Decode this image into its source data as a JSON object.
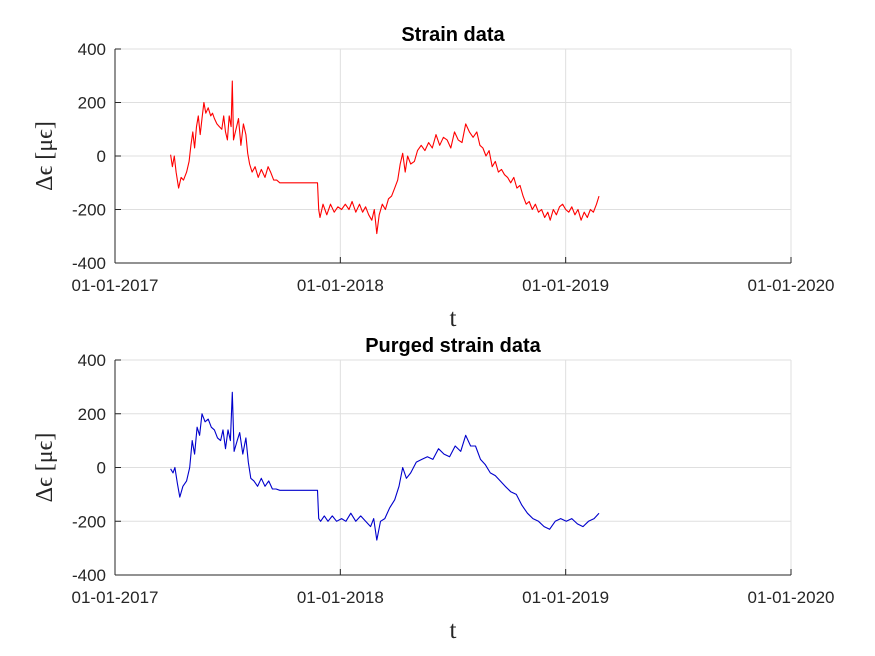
{
  "chart_data": [
    {
      "type": "line",
      "title": "Strain data",
      "xlabel": "t",
      "ylabel": "Δϵ [μϵ]",
      "grid": true,
      "color": "#ff0000",
      "xlim": [
        "2017-01-01",
        "2020-01-01"
      ],
      "ylim": [
        -400,
        400
      ],
      "yticks": [
        -400,
        -200,
        0,
        200,
        400
      ],
      "xtick_labels": [
        "01-01-2017",
        "01-01-2018",
        "01-01-2019",
        "01-01-2020"
      ],
      "ytick_labels": [
        "400",
        "200",
        "0",
        "-200",
        "-400"
      ],
      "series": [
        {
          "values": [
            [
              "2017-04-01",
              5
            ],
            [
              "2017-04-04",
              -40
            ],
            [
              "2017-04-07",
              0
            ],
            [
              "2017-04-10",
              -60
            ],
            [
              "2017-04-14",
              -120
            ],
            [
              "2017-04-18",
              -80
            ],
            [
              "2017-04-22",
              -90
            ],
            [
              "2017-04-27",
              -60
            ],
            [
              "2017-05-01",
              -20
            ],
            [
              "2017-05-04",
              40
            ],
            [
              "2017-05-07",
              90
            ],
            [
              "2017-05-10",
              30
            ],
            [
              "2017-05-13",
              110
            ],
            [
              "2017-05-16",
              150
            ],
            [
              "2017-05-19",
              80
            ],
            [
              "2017-05-22",
              140
            ],
            [
              "2017-05-25",
              200
            ],
            [
              "2017-05-28",
              160
            ],
            [
              "2017-06-01",
              180
            ],
            [
              "2017-06-05",
              150
            ],
            [
              "2017-06-08",
              160
            ],
            [
              "2017-06-11",
              140
            ],
            [
              "2017-06-15",
              120
            ],
            [
              "2017-06-19",
              110
            ],
            [
              "2017-06-23",
              100
            ],
            [
              "2017-06-26",
              150
            ],
            [
              "2017-06-29",
              90
            ],
            [
              "2017-07-02",
              60
            ],
            [
              "2017-07-05",
              150
            ],
            [
              "2017-07-08",
              110
            ],
            [
              "2017-07-10",
              280
            ],
            [
              "2017-07-12",
              60
            ],
            [
              "2017-07-16",
              100
            ],
            [
              "2017-07-20",
              140
            ],
            [
              "2017-07-24",
              40
            ],
            [
              "2017-07-28",
              120
            ],
            [
              "2017-08-01",
              80
            ],
            [
              "2017-08-04",
              10
            ],
            [
              "2017-08-07",
              -30
            ],
            [
              "2017-08-11",
              -60
            ],
            [
              "2017-08-16",
              -40
            ],
            [
              "2017-08-21",
              -80
            ],
            [
              "2017-08-26",
              -50
            ],
            [
              "2017-09-01",
              -80
            ],
            [
              "2017-09-06",
              -40
            ],
            [
              "2017-09-10",
              -60
            ],
            [
              "2017-09-15",
              -90
            ],
            [
              "2017-09-20",
              -90
            ],
            [
              "2017-09-25",
              -100
            ],
            [
              "2017-11-25",
              -100
            ],
            [
              "2017-11-27",
              -200
            ],
            [
              "2017-11-29",
              -230
            ],
            [
              "2017-12-04",
              -180
            ],
            [
              "2017-12-10",
              -220
            ],
            [
              "2017-12-16",
              -180
            ],
            [
              "2017-12-22",
              -210
            ],
            [
              "2017-12-28",
              -190
            ],
            [
              "2018-01-03",
              -200
            ],
            [
              "2018-01-09",
              -180
            ],
            [
              "2018-01-15",
              -200
            ],
            [
              "2018-01-20",
              -170
            ],
            [
              "2018-01-26",
              -210
            ],
            [
              "2018-02-01",
              -180
            ],
            [
              "2018-02-06",
              -210
            ],
            [
              "2018-02-11",
              -190
            ],
            [
              "2018-02-16",
              -220
            ],
            [
              "2018-02-21",
              -240
            ],
            [
              "2018-02-25",
              -200
            ],
            [
              "2018-03-01",
              -290
            ],
            [
              "2018-03-05",
              -220
            ],
            [
              "2018-03-10",
              -180
            ],
            [
              "2018-03-15",
              -200
            ],
            [
              "2018-03-20",
              -160
            ],
            [
              "2018-03-25",
              -150
            ],
            [
              "2018-03-30",
              -120
            ],
            [
              "2018-04-04",
              -90
            ],
            [
              "2018-04-08",
              -30
            ],
            [
              "2018-04-12",
              10
            ],
            [
              "2018-04-16",
              -60
            ],
            [
              "2018-04-20",
              0
            ],
            [
              "2018-04-25",
              -30
            ],
            [
              "2018-05-01",
              -20
            ],
            [
              "2018-05-06",
              20
            ],
            [
              "2018-05-12",
              40
            ],
            [
              "2018-05-18",
              20
            ],
            [
              "2018-05-24",
              50
            ],
            [
              "2018-05-30",
              30
            ],
            [
              "2018-06-05",
              80
            ],
            [
              "2018-06-11",
              40
            ],
            [
              "2018-06-17",
              70
            ],
            [
              "2018-06-23",
              60
            ],
            [
              "2018-06-29",
              30
            ],
            [
              "2018-07-05",
              90
            ],
            [
              "2018-07-11",
              60
            ],
            [
              "2018-07-17",
              50
            ],
            [
              "2018-07-23",
              120
            ],
            [
              "2018-07-29",
              90
            ],
            [
              "2018-08-04",
              70
            ],
            [
              "2018-08-10",
              90
            ],
            [
              "2018-08-15",
              40
            ],
            [
              "2018-08-20",
              30
            ],
            [
              "2018-08-25",
              0
            ],
            [
              "2018-08-30",
              20
            ],
            [
              "2018-09-04",
              -40
            ],
            [
              "2018-09-09",
              -20
            ],
            [
              "2018-09-14",
              -60
            ],
            [
              "2018-09-19",
              -50
            ],
            [
              "2018-09-24",
              -70
            ],
            [
              "2018-09-29",
              -80
            ],
            [
              "2018-10-04",
              -100
            ],
            [
              "2018-10-09",
              -80
            ],
            [
              "2018-10-14",
              -120
            ],
            [
              "2018-10-19",
              -110
            ],
            [
              "2018-10-24",
              -150
            ],
            [
              "2018-10-29",
              -180
            ],
            [
              "2018-11-03",
              -170
            ],
            [
              "2018-11-08",
              -200
            ],
            [
              "2018-11-13",
              -180
            ],
            [
              "2018-11-18",
              -210
            ],
            [
              "2018-11-23",
              -200
            ],
            [
              "2018-11-28",
              -230
            ],
            [
              "2018-12-03",
              -210
            ],
            [
              "2018-12-07",
              -240
            ],
            [
              "2018-12-12",
              -200
            ],
            [
              "2018-12-17",
              -220
            ],
            [
              "2018-12-22",
              -190
            ],
            [
              "2018-12-27",
              -180
            ],
            [
              "2019-01-01",
              -200
            ],
            [
              "2019-01-06",
              -210
            ],
            [
              "2019-01-11",
              -190
            ],
            [
              "2019-01-16",
              -220
            ],
            [
              "2019-01-21",
              -200
            ],
            [
              "2019-01-26",
              -240
            ],
            [
              "2019-01-31",
              -210
            ],
            [
              "2019-02-05",
              -230
            ],
            [
              "2019-02-10",
              -200
            ],
            [
              "2019-02-15",
              -210
            ],
            [
              "2019-02-20",
              -180
            ],
            [
              "2019-02-24",
              -150
            ]
          ]
        }
      ]
    },
    {
      "type": "line",
      "title": "Purged strain data",
      "xlabel": "t",
      "ylabel": "Δϵ [μϵ]",
      "grid": true,
      "color": "#0000cc",
      "xlim": [
        "2017-01-01",
        "2020-01-01"
      ],
      "ylim": [
        -400,
        400
      ],
      "yticks": [
        -400,
        -200,
        0,
        200,
        400
      ],
      "xtick_labels": [
        "01-01-2017",
        "01-01-2018",
        "01-01-2019",
        "01-01-2020"
      ],
      "ytick_labels": [
        "400",
        "200",
        "0",
        "-200",
        "-400"
      ],
      "series": [
        {
          "values": [
            [
              "2017-04-01",
              -5
            ],
            [
              "2017-04-05",
              -20
            ],
            [
              "2017-04-08",
              0
            ],
            [
              "2017-04-12",
              -60
            ],
            [
              "2017-04-16",
              -110
            ],
            [
              "2017-04-21",
              -70
            ],
            [
              "2017-04-27",
              -50
            ],
            [
              "2017-05-02",
              0
            ],
            [
              "2017-05-06",
              100
            ],
            [
              "2017-05-10",
              50
            ],
            [
              "2017-05-14",
              150
            ],
            [
              "2017-05-18",
              120
            ],
            [
              "2017-05-22",
              200
            ],
            [
              "2017-05-27",
              170
            ],
            [
              "2017-06-01",
              180
            ],
            [
              "2017-06-06",
              150
            ],
            [
              "2017-06-11",
              140
            ],
            [
              "2017-06-16",
              110
            ],
            [
              "2017-06-21",
              100
            ],
            [
              "2017-06-25",
              140
            ],
            [
              "2017-06-29",
              70
            ],
            [
              "2017-07-03",
              140
            ],
            [
              "2017-07-07",
              100
            ],
            [
              "2017-07-10",
              280
            ],
            [
              "2017-07-13",
              60
            ],
            [
              "2017-07-18",
              100
            ],
            [
              "2017-07-22",
              130
            ],
            [
              "2017-07-27",
              50
            ],
            [
              "2017-08-01",
              110
            ],
            [
              "2017-08-05",
              20
            ],
            [
              "2017-08-09",
              -40
            ],
            [
              "2017-08-14",
              -50
            ],
            [
              "2017-08-20",
              -70
            ],
            [
              "2017-08-26",
              -40
            ],
            [
              "2017-09-01",
              -70
            ],
            [
              "2017-09-07",
              -50
            ],
            [
              "2017-09-13",
              -80
            ],
            [
              "2017-09-19",
              -80
            ],
            [
              "2017-09-25",
              -85
            ],
            [
              "2017-11-25",
              -85
            ],
            [
              "2017-11-27",
              -190
            ],
            [
              "2017-11-30",
              -200
            ],
            [
              "2017-12-06",
              -180
            ],
            [
              "2017-12-12",
              -200
            ],
            [
              "2017-12-19",
              -180
            ],
            [
              "2017-12-26",
              -200
            ],
            [
              "2018-01-03",
              -190
            ],
            [
              "2018-01-10",
              -200
            ],
            [
              "2018-01-18",
              -170
            ],
            [
              "2018-01-26",
              -200
            ],
            [
              "2018-02-03",
              -180
            ],
            [
              "2018-02-11",
              -200
            ],
            [
              "2018-02-19",
              -220
            ],
            [
              "2018-02-24",
              -190
            ],
            [
              "2018-03-01",
              -270
            ],
            [
              "2018-03-07",
              -200
            ],
            [
              "2018-03-14",
              -190
            ],
            [
              "2018-03-22",
              -150
            ],
            [
              "2018-03-30",
              -120
            ],
            [
              "2018-04-06",
              -70
            ],
            [
              "2018-04-12",
              0
            ],
            [
              "2018-04-18",
              -40
            ],
            [
              "2018-04-25",
              -20
            ],
            [
              "2018-05-04",
              20
            ],
            [
              "2018-05-13",
              30
            ],
            [
              "2018-05-22",
              40
            ],
            [
              "2018-05-31",
              30
            ],
            [
              "2018-06-09",
              70
            ],
            [
              "2018-06-18",
              50
            ],
            [
              "2018-06-27",
              40
            ],
            [
              "2018-07-06",
              80
            ],
            [
              "2018-07-15",
              60
            ],
            [
              "2018-07-23",
              120
            ],
            [
              "2018-07-31",
              80
            ],
            [
              "2018-08-08",
              80
            ],
            [
              "2018-08-16",
              30
            ],
            [
              "2018-08-24",
              10
            ],
            [
              "2018-09-01",
              -20
            ],
            [
              "2018-09-09",
              -30
            ],
            [
              "2018-09-17",
              -50
            ],
            [
              "2018-09-25",
              -70
            ],
            [
              "2018-10-04",
              -90
            ],
            [
              "2018-10-13",
              -100
            ],
            [
              "2018-10-22",
              -140
            ],
            [
              "2018-10-31",
              -170
            ],
            [
              "2018-11-09",
              -190
            ],
            [
              "2018-11-18",
              -200
            ],
            [
              "2018-11-27",
              -220
            ],
            [
              "2018-12-06",
              -230
            ],
            [
              "2018-12-15",
              -200
            ],
            [
              "2018-12-24",
              -190
            ],
            [
              "2019-01-02",
              -200
            ],
            [
              "2019-01-11",
              -190
            ],
            [
              "2019-01-20",
              -210
            ],
            [
              "2019-01-29",
              -220
            ],
            [
              "2019-02-07",
              -200
            ],
            [
              "2019-02-16",
              -190
            ],
            [
              "2019-02-24",
              -170
            ]
          ]
        }
      ]
    }
  ]
}
